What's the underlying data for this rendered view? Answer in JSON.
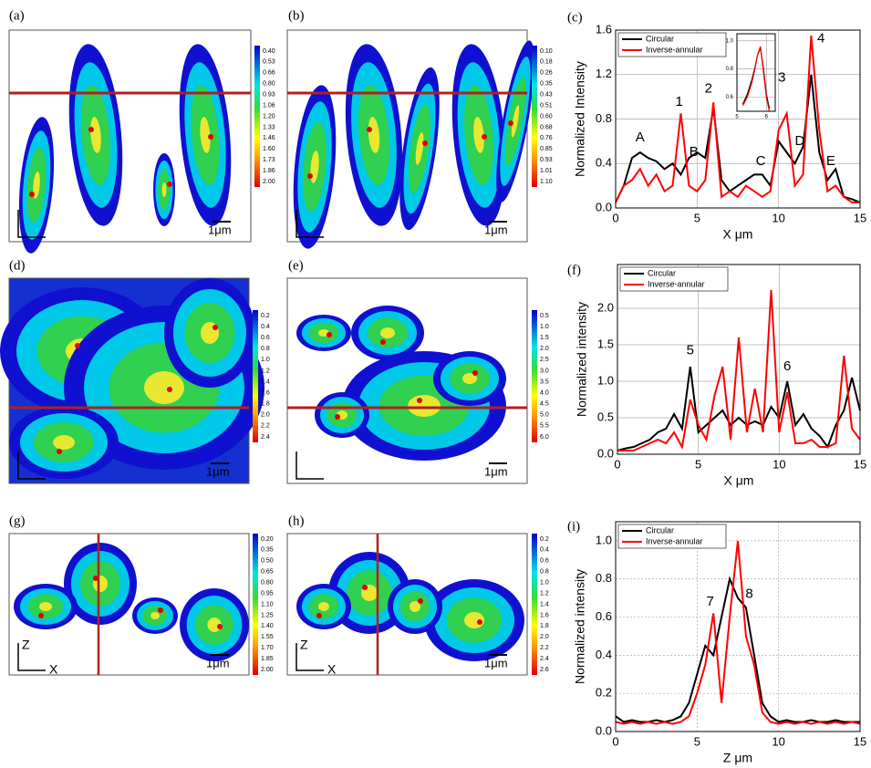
{
  "panels": [
    "(a)",
    "(b)",
    "(c)",
    "(d)",
    "(e)",
    "(f)",
    "(g)",
    "(h)",
    "(i)"
  ],
  "images": [
    {
      "scale": "1μm",
      "colorbar": [
        "0.40",
        "0.53",
        "0.66",
        "0.80",
        "0.93",
        "1.06",
        "1.20",
        "1.33",
        "1.46",
        "1.60",
        "1.73",
        "1.86",
        "2.00"
      ]
    },
    {
      "scale": "1μm",
      "colorbar": [
        "0.10",
        "0.18",
        "0.26",
        "0.35",
        "0.43",
        "0.51",
        "0.60",
        "0.68",
        "0.76",
        "0.85",
        "0.93",
        "1.01",
        "1.10"
      ]
    },
    {
      "scale": "1μm",
      "colorbar": [
        "0.2",
        "0.4",
        "0.6",
        "0.8",
        "1.0",
        "1.2",
        "1.4",
        "1.6",
        "1.8",
        "2.0",
        "2.2",
        "2.4"
      ]
    },
    {
      "scale": "1μm",
      "colorbar": [
        "0.5",
        "1.0",
        "1.5",
        "2.0",
        "2.5",
        "3.0",
        "3.5",
        "4.0",
        "4.5",
        "5.0",
        "5.5",
        "6.0"
      ]
    },
    {
      "scale": "1μm",
      "axes": [
        "Z",
        "X"
      ],
      "colorbar": [
        "0.20",
        "0.35",
        "0.50",
        "0.65",
        "0.80",
        "0.95",
        "1.10",
        "1.25",
        "1.40",
        "1.55",
        "1.70",
        "1.85",
        "2.00"
      ]
    },
    {
      "scale": "1μm",
      "axes": [
        "Z",
        "X"
      ],
      "colorbar": [
        "0.2",
        "0.4",
        "0.6",
        "0.8",
        "1.0",
        "1.2",
        "1.4",
        "1.6",
        "1.8",
        "2.0",
        "2.2",
        "2.4",
        "2.6"
      ]
    }
  ],
  "chart_data": [
    {
      "type": "line",
      "xlabel": "X μm",
      "ylabel": "Normalized Intensity",
      "grid": true,
      "legend": "upper left",
      "xlim": [
        0,
        15
      ],
      "ylim": [
        0,
        1.6
      ],
      "xticks": [
        0,
        5,
        10,
        15
      ],
      "yticks": [
        {
          "value": 0,
          "label": "0.0"
        },
        0.4,
        0.8,
        1.2,
        1.6
      ],
      "x": [
        0,
        0.5,
        1,
        1.5,
        2,
        2.5,
        3,
        3.5,
        4,
        4.5,
        5,
        5.5,
        6,
        6.5,
        7,
        7.5,
        8,
        8.5,
        9,
        9.5,
        10,
        10.5,
        11,
        11.5,
        12,
        12.5,
        13,
        13.5,
        14,
        14.5,
        15
      ],
      "series": [
        {
          "name": "Circular",
          "color": "#000000",
          "values": [
            0.05,
            0.2,
            0.45,
            0.5,
            0.45,
            0.42,
            0.35,
            0.4,
            0.3,
            0.45,
            0.5,
            0.45,
            0.9,
            0.25,
            0.15,
            0.2,
            0.25,
            0.3,
            0.3,
            0.2,
            0.6,
            0.5,
            0.4,
            0.55,
            1.2,
            0.5,
            0.25,
            0.35,
            0.1,
            0.08,
            0.05
          ]
        },
        {
          "name": "Inverse-annular",
          "color": "#ff0000",
          "values": [
            0.05,
            0.2,
            0.25,
            0.35,
            0.2,
            0.3,
            0.15,
            0.2,
            0.85,
            0.2,
            0.15,
            0.25,
            0.95,
            0.1,
            0.15,
            0.1,
            0.2,
            0.15,
            0.1,
            0.15,
            0.7,
            0.85,
            0.2,
            0.3,
            1.55,
            0.7,
            0.15,
            0.2,
            0.1,
            0.05,
            0.05
          ]
        }
      ],
      "annotations": [
        {
          "text": "A",
          "x": 1.5,
          "y": 0.63
        },
        {
          "text": "1",
          "x": 3.9,
          "y": 0.95
        },
        {
          "text": "B",
          "x": 4.8,
          "y": 0.5
        },
        {
          "text": "2",
          "x": 5.7,
          "y": 1.07
        },
        {
          "text": "C",
          "x": 8.9,
          "y": 0.42
        },
        {
          "text": "3",
          "x": 10.2,
          "y": 1.17
        },
        {
          "text": "D",
          "x": 11.3,
          "y": 0.6
        },
        {
          "text": "4",
          "x": 12.6,
          "y": 1.52
        },
        {
          "text": "E",
          "x": 13.2,
          "y": 0.42
        }
      ],
      "inset": {
        "xlim": [
          5,
          6.3
        ],
        "ylim": [
          0.5,
          1.05
        ],
        "xticks": [
          5,
          6
        ],
        "yticks": [
          0.6,
          0.8,
          {
            "value": 1,
            "label": "1.0"
          }
        ],
        "x": [
          5.2,
          5.35,
          5.5,
          5.6,
          5.7,
          5.8,
          5.9,
          6.0,
          6.1
        ],
        "series": [
          {
            "color": "#000000",
            "values": [
              0.55,
              0.62,
              0.72,
              0.8,
              0.9,
              0.95,
              0.8,
              0.62,
              0.52
            ]
          },
          {
            "color": "#ff0000",
            "values": [
              0.54,
              0.6,
              0.7,
              0.79,
              0.9,
              0.96,
              0.78,
              0.6,
              0.5
            ]
          }
        ]
      }
    },
    {
      "type": "line",
      "xlabel": "X μm",
      "ylabel": "Normalized intensity",
      "grid": true,
      "legend": "upper left",
      "xlim": [
        0,
        15
      ],
      "ylim": [
        0,
        2.6
      ],
      "xticks": [
        0,
        5,
        10,
        15
      ],
      "yticks": [
        {
          "value": 0,
          "label": "0.0"
        },
        0.5,
        {
          "value": 1,
          "label": "1.0"
        },
        1.5,
        {
          "value": 2,
          "label": "2.0"
        }
      ],
      "x": [
        0,
        0.5,
        1,
        1.5,
        2,
        2.5,
        3,
        3.5,
        4,
        4.5,
        5,
        5.5,
        6,
        6.5,
        7,
        7.5,
        8,
        8.5,
        9,
        9.5,
        10,
        10.5,
        11,
        11.5,
        12,
        12.5,
        13,
        13.5,
        14,
        14.5,
        15
      ],
      "series": [
        {
          "name": "Circular",
          "color": "#000000",
          "values": [
            0.05,
            0.08,
            0.1,
            0.15,
            0.2,
            0.3,
            0.35,
            0.55,
            0.35,
            1.2,
            0.3,
            0.4,
            0.5,
            0.6,
            0.4,
            0.5,
            0.4,
            0.45,
            0.4,
            0.65,
            0.5,
            1.0,
            0.4,
            0.55,
            0.35,
            0.25,
            0.1,
            0.4,
            0.6,
            1.05,
            0.6
          ]
        },
        {
          "name": "Inverse-annular",
          "color": "#ff0000",
          "values": [
            0.05,
            0.05,
            0.05,
            0.1,
            0.15,
            0.2,
            0.15,
            0.3,
            0.1,
            0.75,
            0.4,
            0.2,
            0.8,
            1.2,
            0.2,
            1.6,
            0.3,
            0.9,
            0.3,
            2.25,
            0.3,
            0.85,
            0.15,
            0.15,
            0.2,
            0.1,
            0.1,
            0.15,
            1.35,
            0.35,
            0.2
          ]
        }
      ],
      "annotations": [
        {
          "text": "5",
          "x": 4.5,
          "y": 1.42
        },
        {
          "text": "6",
          "x": 10.5,
          "y": 1.2
        }
      ]
    },
    {
      "type": "line",
      "xlabel": "Z μm",
      "ylabel": "Normalized intensity",
      "grid": true,
      "legend": "upper left",
      "xlim": [
        0,
        15
      ],
      "ylim": [
        0,
        1.1
      ],
      "xticks": [
        0,
        5,
        10,
        15
      ],
      "yticks": [
        {
          "value": 0,
          "label": "0.0"
        },
        0.2,
        0.4,
        0.6,
        0.8,
        {
          "value": 1,
          "label": "1.0"
        }
      ],
      "x": [
        0,
        0.5,
        1,
        1.5,
        2,
        2.5,
        3,
        3.5,
        4,
        4.5,
        5,
        5.5,
        6,
        6.5,
        7,
        7.5,
        8,
        8.5,
        9,
        9.5,
        10,
        10.5,
        11,
        11.5,
        12,
        12.5,
        13,
        13.5,
        14,
        14.5,
        15
      ],
      "series": [
        {
          "name": "Circular",
          "color": "#000000",
          "values": [
            0.08,
            0.05,
            0.06,
            0.05,
            0.05,
            0.06,
            0.05,
            0.06,
            0.08,
            0.15,
            0.3,
            0.45,
            0.4,
            0.6,
            0.8,
            0.7,
            0.65,
            0.4,
            0.15,
            0.08,
            0.05,
            0.06,
            0.05,
            0.05,
            0.06,
            0.05,
            0.05,
            0.06,
            0.05,
            0.05,
            0.05
          ]
        },
        {
          "name": "Inverse-annular",
          "color": "#ff0000",
          "values": [
            0.05,
            0.04,
            0.05,
            0.04,
            0.05,
            0.04,
            0.05,
            0.04,
            0.05,
            0.08,
            0.2,
            0.35,
            0.62,
            0.15,
            0.6,
            1.0,
            0.5,
            0.35,
            0.1,
            0.05,
            0.04,
            0.05,
            0.04,
            0.05,
            0.04,
            0.05,
            0.04,
            0.05,
            0.04,
            0.05,
            0.04
          ]
        }
      ],
      "annotations": [
        {
          "text": "7",
          "x": 5.8,
          "y": 0.68
        },
        {
          "text": "8",
          "x": 8.2,
          "y": 0.72
        }
      ]
    }
  ]
}
